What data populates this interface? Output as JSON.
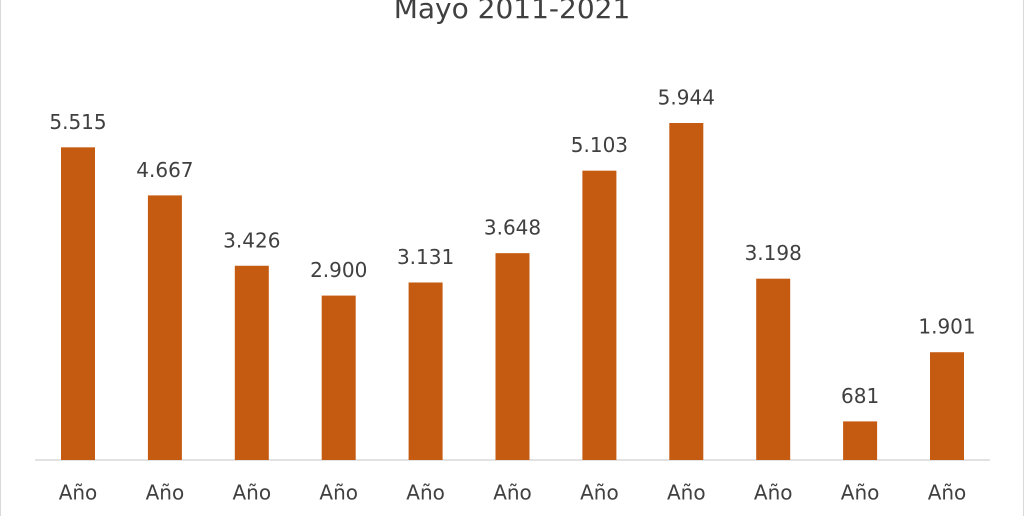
{
  "chart_data": {
    "type": "bar",
    "title": "Mayo 2011-2021",
    "categories": [
      "Año",
      "Año",
      "Año",
      "Año",
      "Año",
      "Año",
      "Año",
      "Año",
      "Año",
      "Año",
      "Año"
    ],
    "values": [
      5515,
      4667,
      3426,
      2900,
      3131,
      3648,
      5103,
      5944,
      3198,
      681,
      1901
    ],
    "value_labels": [
      "5.515",
      "4.667",
      "3.426",
      "2.900",
      "3.131",
      "3.648",
      "5.103",
      "5.944",
      "3.198",
      "681",
      "1.901"
    ],
    "color": "#c55a11"
  }
}
